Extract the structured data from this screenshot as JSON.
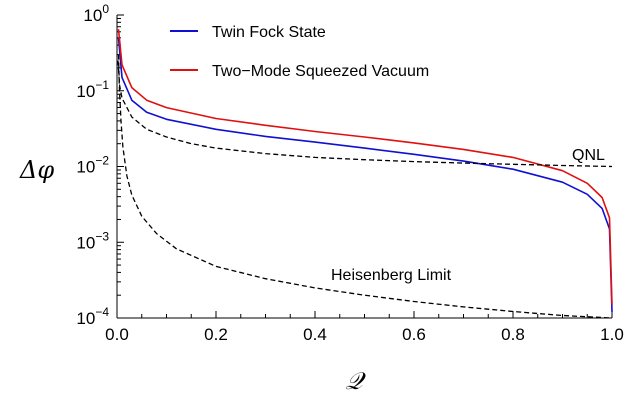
{
  "chart_data": {
    "type": "line",
    "title": "",
    "xlabel": "𝒬",
    "ylabel": "Δφ",
    "xlim": [
      0,
      1
    ],
    "ylim": [
      0.0001,
      1
    ],
    "yscale": "log",
    "x_ticks": [
      "0.0",
      "0.2",
      "0.4",
      "0.6",
      "0.8",
      "1.0"
    ],
    "y_ticks": [
      {
        "base": "10",
        "exp": "0"
      },
      {
        "base": "10",
        "exp": "−1"
      },
      {
        "base": "10",
        "exp": "−2"
      },
      {
        "base": "10",
        "exp": "−3"
      },
      {
        "base": "10",
        "exp": "−4"
      }
    ],
    "legend_position": "top-left",
    "series": [
      {
        "name": "Twin Fock State",
        "color": "#1010d0",
        "style": "solid",
        "x": [
          0.003,
          0.01,
          0.03,
          0.06,
          0.1,
          0.2,
          0.3,
          0.4,
          0.5,
          0.6,
          0.7,
          0.8,
          0.9,
          0.95,
          0.98,
          0.995,
          1.0
        ],
        "y": [
          0.5,
          0.15,
          0.075,
          0.052,
          0.042,
          0.031,
          0.025,
          0.021,
          0.0175,
          0.0145,
          0.0118,
          0.0092,
          0.0062,
          0.0043,
          0.0028,
          0.0015,
          0.00012
        ]
      },
      {
        "name": "Two-Mode Squeezed Vacuum",
        "color": "#e01010",
        "style": "solid",
        "x": [
          0.003,
          0.01,
          0.03,
          0.06,
          0.1,
          0.2,
          0.3,
          0.4,
          0.5,
          0.6,
          0.7,
          0.8,
          0.9,
          0.95,
          0.98,
          0.995,
          1.0
        ],
        "y": [
          0.65,
          0.22,
          0.11,
          0.075,
          0.06,
          0.043,
          0.035,
          0.029,
          0.0245,
          0.0205,
          0.0168,
          0.0132,
          0.0088,
          0.006,
          0.0039,
          0.0021,
          0.00015
        ]
      },
      {
        "name": "QNL",
        "color": "#000000",
        "style": "dashed",
        "x": [
          0.002,
          0.005,
          0.01,
          0.03,
          0.06,
          0.1,
          0.15,
          0.2,
          0.3,
          0.4,
          0.5,
          0.6,
          0.7,
          0.8,
          0.9,
          1.0
        ],
        "y": [
          0.25,
          0.12,
          0.08,
          0.045,
          0.031,
          0.0245,
          0.02,
          0.0175,
          0.0148,
          0.0132,
          0.0123,
          0.0116,
          0.0111,
          0.0107,
          0.0103,
          0.01
        ]
      },
      {
        "name": "Heisenberg Limit",
        "color": "#000000",
        "style": "dashed",
        "x": [
          0.003,
          0.005,
          0.008,
          0.012,
          0.02,
          0.03,
          0.05,
          0.08,
          0.12,
          0.2,
          0.3,
          0.4,
          0.5,
          0.6,
          0.7,
          0.8,
          0.9,
          1.0
        ],
        "y": [
          0.3,
          0.1,
          0.04,
          0.018,
          0.0075,
          0.0042,
          0.0022,
          0.0013,
          0.00082,
          0.00048,
          0.00033,
          0.00025,
          0.0002,
          0.000165,
          0.00014,
          0.000122,
          0.000108,
          0.0001
        ]
      }
    ],
    "legend": [
      {
        "label": "Twin Fock State",
        "color": "#1010d0"
      },
      {
        "label": "Two−Mode Squeezed Vacuum",
        "color": "#e01010"
      }
    ],
    "annotations": [
      {
        "text": "QNL",
        "series": "QNL"
      },
      {
        "text": "Heisenberg Limit",
        "series": "Heisenberg Limit"
      }
    ]
  }
}
